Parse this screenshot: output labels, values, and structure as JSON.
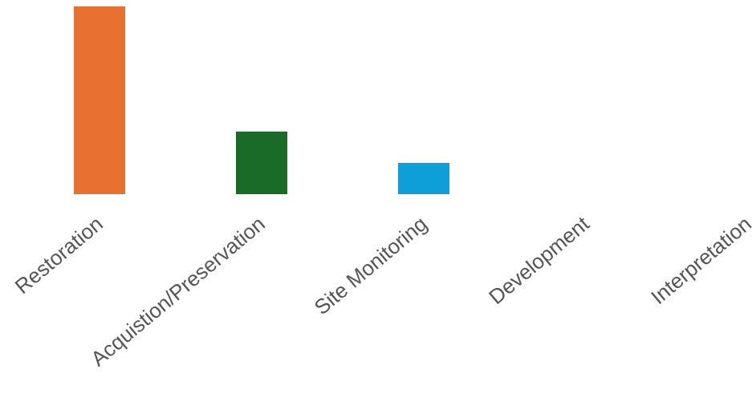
{
  "chart_data": {
    "type": "bar",
    "categories": [
      "Restoration",
      "Acquistion/Preservation",
      "Site Monitoring",
      "Development",
      "Interpretation"
    ],
    "values": [
      6,
      2,
      1,
      0,
      0
    ],
    "colors": [
      "#E87132",
      "#1A6B27",
      "#0F9FD8",
      "#808080",
      "#808080"
    ],
    "ylim": [
      0,
      6
    ],
    "grid": false,
    "legend": "none"
  }
}
